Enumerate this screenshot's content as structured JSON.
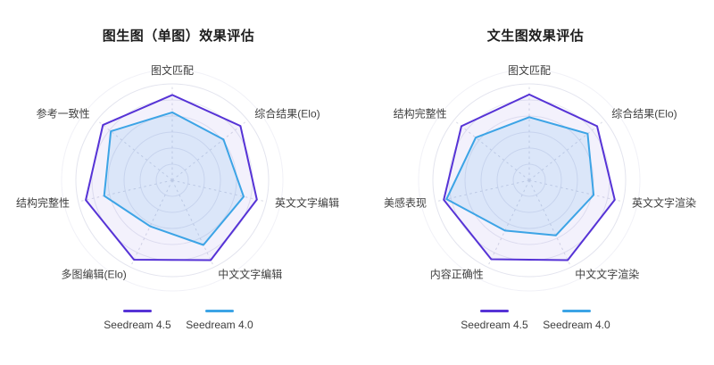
{
  "page": {
    "background": "#ffffff"
  },
  "style": {
    "ring_color": "#e7e8f1",
    "outer_ring_color": "#e3e4ee",
    "halo_ring_color": "#f1f1f7",
    "spoke_color": "#d8dae6",
    "axis_label_color": "#404040",
    "title_color": "#1c1c1c"
  },
  "chart_data": [
    {
      "type": "radar",
      "title": "图生图（单图）效果评估",
      "categories": [
        "图文匹配",
        "综合结果(Elo)",
        "英文文字编辑",
        "中文文字编辑",
        "多图编辑(Elo)",
        "结构完整性",
        "参考一致性"
      ],
      "max": 100,
      "rings": 6,
      "grid": "circular",
      "legend_position": "bottom",
      "series": [
        {
          "name": "Seedream 4.5",
          "color": "#5633d6",
          "fill": "rgba(86,51,214,0.07)",
          "values": [
            88.5,
            90.5,
            90,
            92,
            91.5,
            92,
            92
          ]
        },
        {
          "name": "Seedream 4.0",
          "color": "#3ca4e6",
          "fill": "rgba(60,164,230,0.13)",
          "values": [
            70.5,
            68,
            76,
            74.5,
            53,
            72.5,
            81.5
          ]
        }
      ]
    },
    {
      "type": "radar",
      "title": "文生图效果评估",
      "categories": [
        "图文匹配",
        "综合结果(Elo)",
        "英文文字渲染",
        "中文文字渲染",
        "内容正确性",
        "美感表现",
        "结构完整性"
      ],
      "max": 100,
      "rings": 6,
      "grid": "circular",
      "legend_position": "bottom",
      "series": [
        {
          "name": "Seedream 4.5",
          "color": "#5633d6",
          "fill": "rgba(86,51,214,0.07)",
          "values": [
            89,
            90,
            91,
            92,
            91,
            91,
            90
          ]
        },
        {
          "name": "Seedream 4.0",
          "color": "#3ca4e6",
          "fill": "rgba(60,164,230,0.13)",
          "values": [
            65.5,
            77.5,
            68.5,
            63.5,
            58,
            88,
            71
          ]
        }
      ]
    }
  ]
}
